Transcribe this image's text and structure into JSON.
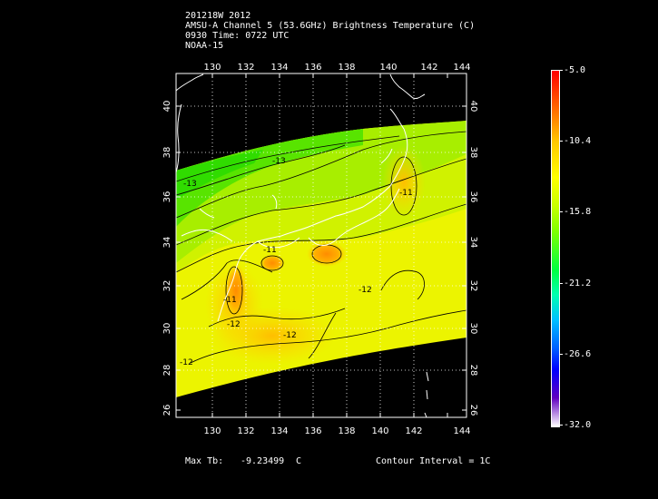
{
  "header": {
    "line1": "201218W 2012",
    "line2": "AMSU-A Channel 5 (53.6GHz) Brightness Temperature (C)",
    "line3": "0930 Time: 0722 UTC",
    "line4": "NOAA-15"
  },
  "map": {
    "lon_ticks": [
      "130",
      "132",
      "134",
      "136",
      "138",
      "140",
      "142",
      "144"
    ],
    "lat_ticks": [
      "40",
      "38",
      "36",
      "34",
      "32",
      "30",
      "28",
      "26"
    ],
    "contour_labels": [
      "-13",
      "-13",
      "-11",
      "-12",
      "-12",
      "-11",
      "-11",
      "-12",
      "-12"
    ],
    "lon_range": [
      128,
      144
    ],
    "lat_range": [
      25.6,
      41
    ]
  },
  "colorbar": {
    "labels": [
      "-5.0",
      "-10.4",
      "-15.8",
      "-21.2",
      "-26.6",
      "-32.0"
    ],
    "min": -32.0,
    "max": -5.0
  },
  "footer": {
    "max_tb_label": "Max Tb:",
    "max_tb_value": "-9.23499",
    "max_tb_unit": "C",
    "contour_interval": "Contour Interval = 1C"
  }
}
